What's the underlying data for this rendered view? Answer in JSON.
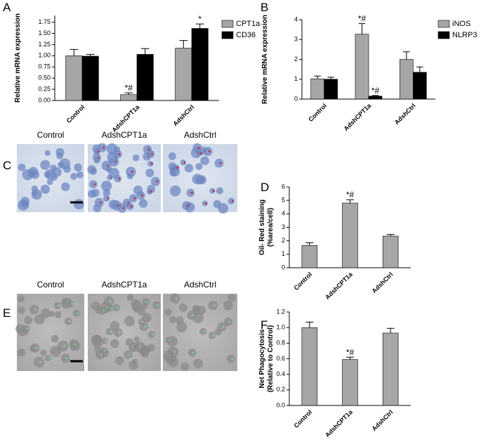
{
  "panel_labels": [
    "A",
    "B",
    "C",
    "D",
    "E",
    "F"
  ],
  "image_panels": [
    {
      "labels": [
        "Control",
        "AdshCPT1a",
        "AdshCtrl"
      ]
    },
    {
      "labels": [
        "Control",
        "AdshCPT1a",
        "AdshCtrl"
      ]
    }
  ],
  "chart_data": [
    {
      "type": "bar",
      "ylabel": [
        "Relative mRNA expression"
      ],
      "categories": [
        "Control",
        "AdshCPT1a",
        "AdshCtrl"
      ],
      "series": [
        {
          "name": "CPT1a",
          "color": "#a6a6a6",
          "values": [
            1.0,
            0.13,
            1.17
          ],
          "errors": [
            0.14,
            0.04,
            0.17
          ],
          "annotations": [
            null,
            "*#",
            null
          ]
        },
        {
          "name": "CD36",
          "color": "#000000",
          "values": [
            0.99,
            1.03,
            1.61
          ],
          "errors": [
            0.04,
            0.13,
            0.1
          ],
          "annotations": [
            null,
            null,
            "*"
          ]
        }
      ],
      "ylim": [
        0,
        1.9
      ],
      "yticks": [
        {
          "value": 0,
          "label": "0.00"
        },
        {
          "value": 0.25,
          "label": "0.25"
        },
        {
          "value": 0.5,
          "label": "0.50"
        },
        {
          "value": 0.75,
          "label": "0.75"
        },
        {
          "value": 1,
          "label": "1.00"
        },
        {
          "value": 1.25,
          "label": "1.25"
        },
        {
          "value": 1.5,
          "label": "1.50"
        },
        {
          "value": 1.75,
          "label": "1.75"
        }
      ],
      "legend": "top-right"
    },
    {
      "type": "bar",
      "ylabel": [
        "Relative mRNA expression"
      ],
      "categories": [
        "Control",
        "AdshCPT1a",
        "AdshCtrl"
      ],
      "series": [
        {
          "name": "iNOS",
          "color": "#a6a6a6",
          "values": [
            1.02,
            3.27,
            2.0
          ],
          "errors": [
            0.14,
            0.53,
            0.38
          ],
          "annotations": [
            null,
            "*#",
            null
          ]
        },
        {
          "name": "NLRP3",
          "color": "#000000",
          "values": [
            1.0,
            0.15,
            1.35
          ],
          "errors": [
            0.1,
            0.03,
            0.27
          ],
          "annotations": [
            null,
            "*#",
            null
          ]
        }
      ],
      "ylim": [
        0,
        4
      ],
      "yticks": [
        0,
        1,
        2,
        3,
        4
      ],
      "legend": "top-right"
    },
    {
      "type": "bar",
      "ylabel": [
        "Oil- Red staining",
        "(%area/cell)"
      ],
      "categories": [
        "Control",
        "AdshCPT1a",
        "AdshCtrl"
      ],
      "values": [
        1.65,
        4.8,
        2.35
      ],
      "errors": [
        0.2,
        0.25,
        0.12
      ],
      "annotations": [
        null,
        "*#",
        null
      ],
      "color": "#a6a6a6",
      "ylim": [
        0,
        6
      ],
      "yticks": [
        0,
        1,
        2,
        3,
        4,
        5,
        6
      ]
    },
    {
      "type": "bar",
      "ylabel": [
        "Net Phagocytosis",
        "(Relative to Control)"
      ],
      "categories": [
        "Control",
        "AdshCPT1a",
        "AdshCtrl"
      ],
      "values": [
        1.0,
        0.59,
        0.93
      ],
      "errors": [
        0.07,
        0.03,
        0.06
      ],
      "annotations": [
        null,
        "*#",
        null
      ],
      "color": "#a6a6a6",
      "ylim": [
        0,
        1.2
      ],
      "yticks": [
        {
          "value": 0,
          "label": "0.0"
        },
        {
          "value": 0.2,
          "label": "0.2"
        },
        {
          "value": 0.4,
          "label": "0.4"
        },
        {
          "value": 0.6,
          "label": "0.6"
        },
        {
          "value": 0.8,
          "label": "0.8"
        },
        {
          "value": 1,
          "label": "1.0"
        },
        {
          "value": 1.2,
          "label": "1.2"
        }
      ]
    }
  ]
}
